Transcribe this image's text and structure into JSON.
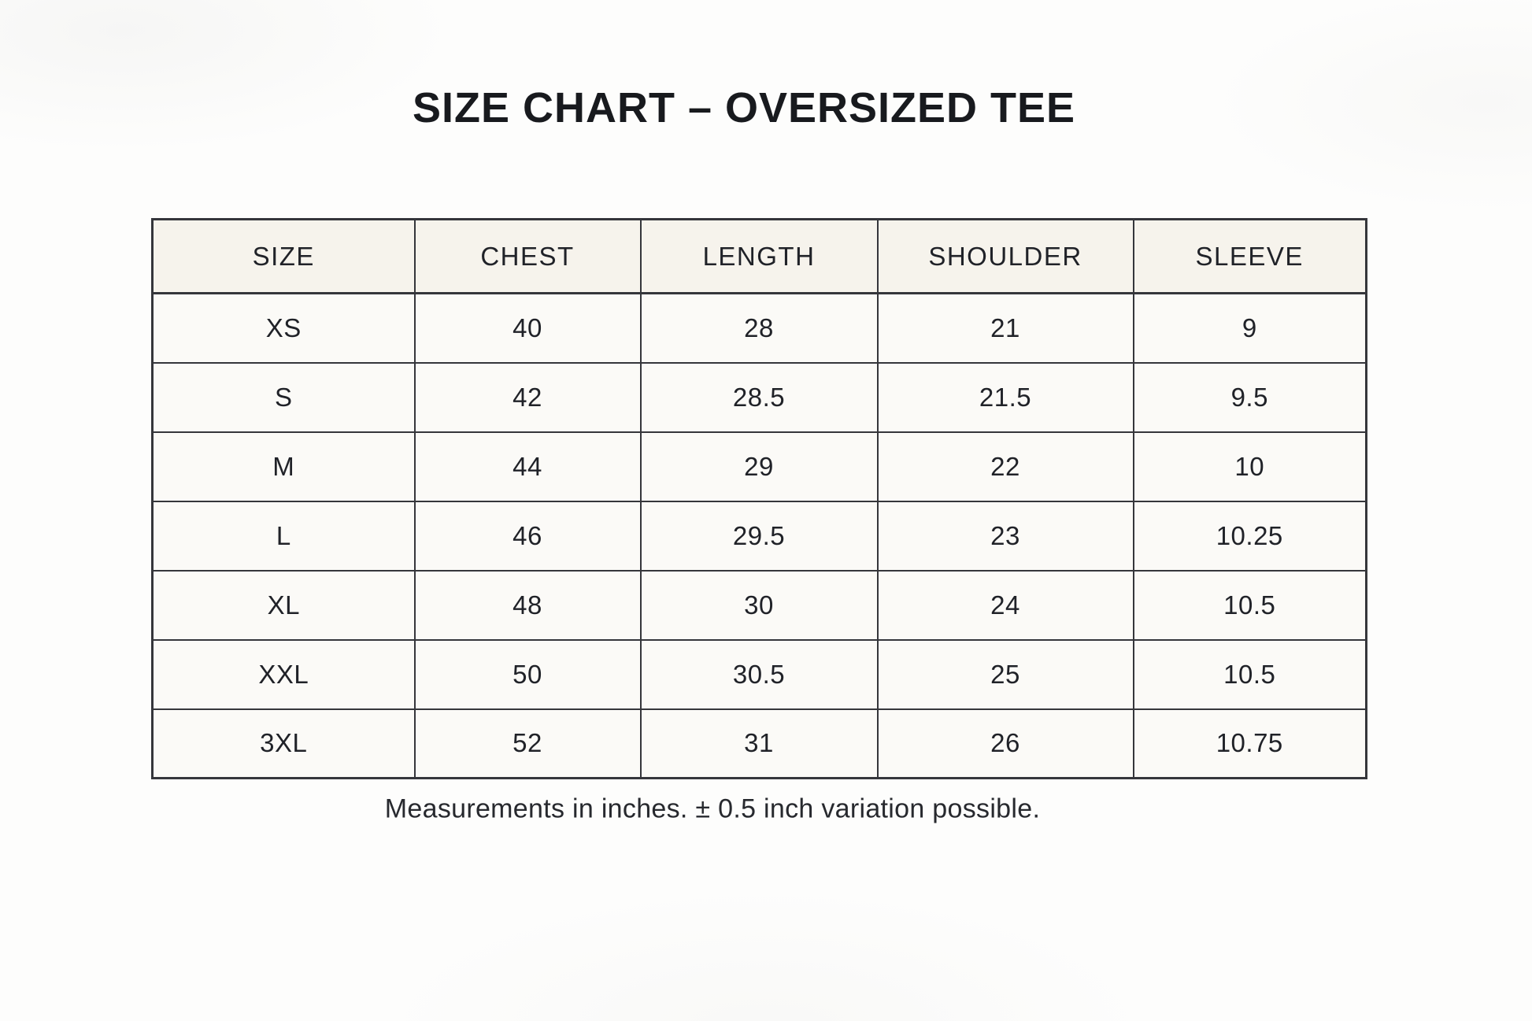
{
  "title": "SIZE CHART – OVERSIZED TEE",
  "footnote": "Measurements in inches. ± 0.5 inch variation possible.",
  "chart_data": {
    "type": "table",
    "title": "SIZE CHART – OVERSIZED TEE",
    "columns": [
      "SIZE",
      "CHEST",
      "LENGTH",
      "SHOULDER",
      "SLEEVE"
    ],
    "rows": [
      [
        "XS",
        "40",
        "28",
        "21",
        "9"
      ],
      [
        "S",
        "42",
        "28.5",
        "21.5",
        "9.5"
      ],
      [
        "M",
        "44",
        "29",
        "22",
        "10"
      ],
      [
        "L",
        "46",
        "29.5",
        "23",
        "10.25"
      ],
      [
        "XL",
        "48",
        "30",
        "24",
        "10.5"
      ],
      [
        "XXL",
        "50",
        "30.5",
        "25",
        "10.5"
      ],
      [
        "3XL",
        "52",
        "31",
        "26",
        "10.75"
      ]
    ],
    "units": "inches",
    "note": "Measurements in inches. ± 0.5 inch variation possible.",
    "layout": {
      "grid": true,
      "header_row": true
    }
  },
  "colors": {
    "page_bg": "#fdfdfc",
    "header_bg": "#f6f3ec",
    "cell_bg": "#fbfaf7",
    "border": "#35363b",
    "text": "#202228",
    "title": "#181a1e"
  }
}
